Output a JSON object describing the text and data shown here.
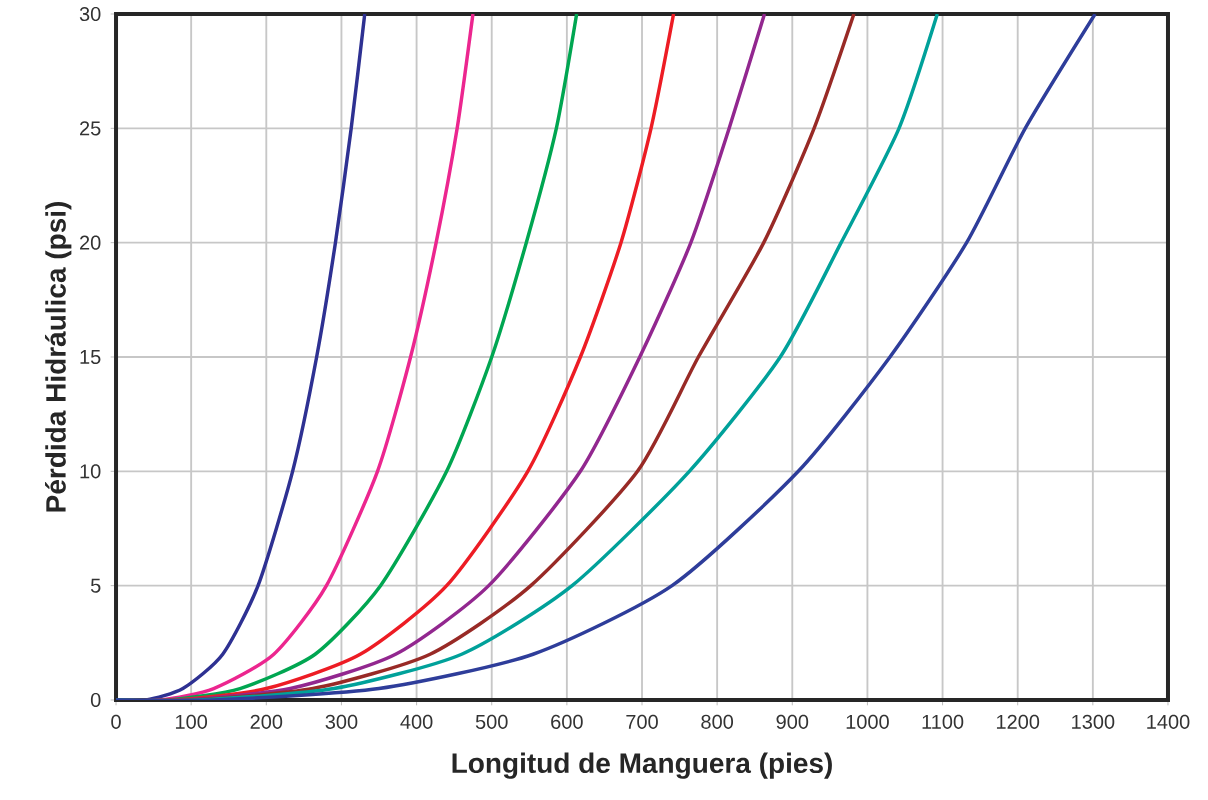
{
  "chart_data": {
    "type": "line",
    "xlabel": "Longitud de Manguera (pies)",
    "ylabel": "Pérdida Hidráulica (psi)",
    "xlim": [
      0,
      1400
    ],
    "ylim": [
      0,
      30
    ],
    "xticks": [
      0,
      100,
      200,
      300,
      400,
      500,
      600,
      700,
      800,
      900,
      1000,
      1100,
      1200,
      1300,
      1400
    ],
    "yticks": [
      0,
      5,
      10,
      15,
      20,
      25,
      30
    ],
    "grid": true,
    "marker": "none",
    "line_style": "solid",
    "series": [
      {
        "color": "#2e3192",
        "x": [
          0,
          40,
          89,
          142,
          189,
          235,
          267,
          292,
          313,
          331
        ],
        "values": [
          0,
          0,
          0.5,
          2,
          5,
          10,
          15,
          20,
          25,
          30
        ]
      },
      {
        "color": "#ec268f",
        "x": [
          0,
          60,
          130,
          210,
          280,
          348,
          392,
          426,
          454,
          475
        ],
        "values": [
          0,
          0,
          0.5,
          2,
          5,
          10,
          15,
          20,
          25,
          30
        ]
      },
      {
        "color": "#00a651",
        "x": [
          0,
          70,
          165,
          265,
          352,
          440,
          500,
          546,
          586,
          613
        ],
        "values": [
          0,
          0,
          0.5,
          2,
          5,
          10,
          15,
          20,
          25,
          30
        ]
      },
      {
        "color": "#ed1c24",
        "x": [
          0,
          80,
          200,
          325,
          440,
          548,
          618,
          672,
          712,
          742
        ],
        "values": [
          0,
          0,
          0.5,
          2,
          5,
          10,
          15,
          20,
          25,
          30
        ]
      },
      {
        "color": "#92278f",
        "x": [
          0,
          90,
          232,
          372,
          496,
          618,
          697,
          765,
          816,
          863
        ],
        "values": [
          0,
          0,
          0.5,
          2,
          5,
          10,
          15,
          20,
          25,
          30
        ]
      },
      {
        "color": "#982a26",
        "x": [
          0,
          100,
          262,
          418,
          552,
          694,
          775,
          862,
          929,
          982
        ],
        "values": [
          0,
          0,
          0.5,
          2,
          5,
          10,
          15,
          20,
          25,
          30
        ]
      },
      {
        "color": "#00a19a",
        "x": [
          0,
          110,
          290,
          460,
          607,
          763,
          884,
          965,
          1042,
          1093
        ],
        "values": [
          0,
          0,
          0.5,
          2,
          5,
          10,
          15,
          20,
          25,
          30
        ]
      },
      {
        "color": "#2e3d9a",
        "x": [
          0,
          130,
          350,
          555,
          740,
          908,
          1030,
          1132,
          1210,
          1303
        ],
        "values": [
          0,
          0,
          0.5,
          2,
          5,
          10,
          15,
          20,
          25,
          30
        ]
      }
    ]
  }
}
